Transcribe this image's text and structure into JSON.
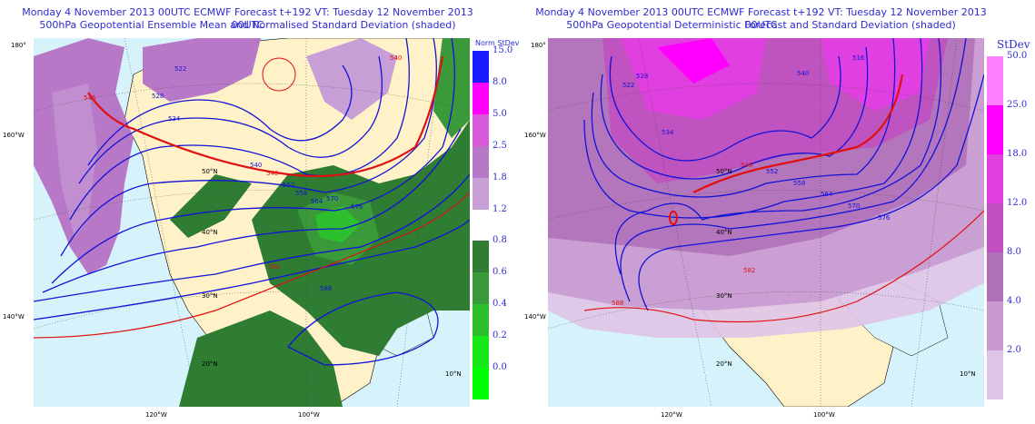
{
  "left_panel": {
    "title_line1": "Monday 4 November 2013 00UTC ECMWF Forecast t+192  VT: Tuesday 12 November 2013 00UTC",
    "title_line2": "500hPa Geopotential Ensemble Mean and Normalised Standard Deviation (shaded)",
    "colorbar_title": "Norm StDev",
    "colorbar_upper": [
      {
        "label": "15.0",
        "color": "#1a1aff"
      },
      {
        "label": "8.0",
        "color": "#ff00ff"
      },
      {
        "label": "5.0",
        "color": "#d85ad8"
      },
      {
        "label": "2.5",
        "color": "#b878c8"
      },
      {
        "label": "1.8",
        "color": "#c79fd6"
      },
      {
        "label": "1.2",
        "color": "#ffffff"
      }
    ],
    "colorbar_lower": [
      {
        "label": "0.8",
        "color": "#2e7d32"
      },
      {
        "label": "0.6",
        "color": "#3a9a3a"
      },
      {
        "label": "0.4",
        "color": "#2ebf2e"
      },
      {
        "label": "0.2",
        "color": "#19e619"
      },
      {
        "label": "0.0",
        "color": "#00ff00"
      }
    ],
    "contour_labels": [
      "522",
      "528",
      "534",
      "540",
      "546",
      "552",
      "558",
      "564",
      "570",
      "576",
      "582",
      "588",
      "540",
      "546"
    ]
  },
  "right_panel": {
    "title_line1": "Monday 4 November 2013 00UTC ECMWF Forecast t+192  VT: Tuesday 12 November 2013 00UTC",
    "title_line2": "500hPa Geopotential Deterministic Forecast and Standard Deviation (shaded)",
    "colorbar_title": "StDev",
    "colorbar": [
      {
        "label": "50.0",
        "color": "#ff80ff"
      },
      {
        "label": "25.0",
        "color": "#ff00ff"
      },
      {
        "label": "18.0",
        "color": "#e040e0"
      },
      {
        "label": "12.0",
        "color": "#c050c0"
      },
      {
        "label": "8.0",
        "color": "#b070b8"
      },
      {
        "label": "4.0",
        "color": "#c89ad0"
      },
      {
        "label": "2.0",
        "color": "#e0c4e6"
      }
    ],
    "contour_labels": [
      "516",
      "522",
      "528",
      "534",
      "540",
      "546",
      "552",
      "558",
      "564",
      "570",
      "576",
      "582",
      "588"
    ]
  },
  "graticule": {
    "left_lon_labels": [
      "180°",
      "160°W",
      "140°W"
    ],
    "bottom_lon_labels": [
      "120°W",
      "100°W"
    ],
    "lat_labels": [
      "50°N",
      "40°N",
      "30°N",
      "20°N",
      "10°N"
    ]
  },
  "colors": {
    "title": "#2b2bd0",
    "ocean": "#d6f3fb",
    "land": "#fff1c8",
    "contour_blue": "#1212d8",
    "contour_red": "#e01010"
  }
}
